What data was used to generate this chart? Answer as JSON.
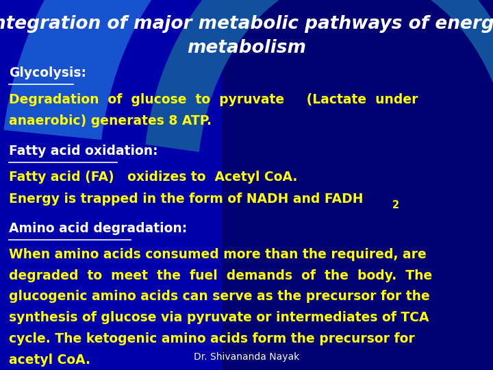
{
  "title_line1": "Integration of major metabolic pathways of energy",
  "title_line2": "metabolism",
  "title_color": "#FFFFFF",
  "title_fontsize": 19,
  "title_style": "italic",
  "title_weight": "bold",
  "bg_color": "#0000AA",
  "text_color_heading": "#FFFFFF",
  "text_color_body": "#FFFF00",
  "heading_fontsize": 13.5,
  "body_fontsize": 13.5,
  "section1_heading": "Glycolysis:",
  "section1_body1": "Degradation  of  glucose  to  pyruvate     (Lactate  under",
  "section1_body2": "anaerobic) generates 8 ATP.",
  "section2_heading": "Fatty acid oxidation:",
  "section2_body1": "Fatty acid (FA)   oxidizes to  Acetyl CoA.",
  "section2_body2_pre": "Energy is trapped in the form of NADH and FADH",
  "section2_body2_sub": "2",
  "section3_heading": "Amino acid degradation:",
  "section3_lines": [
    "When amino acids consumed more than the required, are",
    "degraded  to  meet  the  fuel  demands  of  the  body.  The",
    "glucogenic amino acids can serve as the precursor for the",
    "synthesis of glucose via pyruvate or intermediates of TCA",
    "cycle. The ketogenic amino acids form the precursor for",
    "acetyl CoA."
  ],
  "footer": "Dr. Shivananda Nayak",
  "footer_color": "#FFFFFF",
  "footer_fontsize": 10
}
